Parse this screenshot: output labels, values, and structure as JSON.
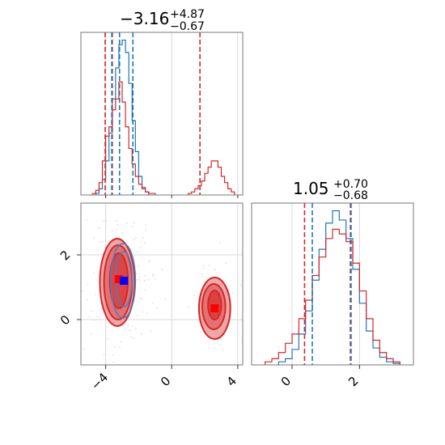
{
  "chart_data": [
    {
      "type": "histogram",
      "panel": "top-left marginal",
      "title_main": "−3.16",
      "title_sup": "+4.87",
      "title_sub": "−0.67",
      "xlim": [
        -5.5,
        4.3
      ],
      "grid": true,
      "series": [
        {
          "name": "",
          "color": "#1f77b4",
          "bins": [
            -4.6,
            -4.4,
            -4.2,
            -4.0,
            -3.8,
            -3.6,
            -3.4,
            -3.2,
            -3.0,
            -2.8,
            -2.6,
            -2.4,
            -2.2,
            -2.0,
            -1.8,
            -1.6
          ],
          "counts": [
            1,
            4,
            10,
            22,
            40,
            62,
            82,
            97,
            100,
            92,
            72,
            48,
            28,
            12,
            5,
            2
          ]
        },
        {
          "name": "",
          "color": "#d62728",
          "bins": [
            -4.8,
            -4.6,
            -4.4,
            -4.2,
            -4.0,
            -3.8,
            -3.6,
            -3.4,
            -3.2,
            -3.0,
            -2.8,
            -2.6,
            -2.4,
            -2.2,
            -2.0,
            -1.8,
            -1.6,
            -1.4,
            -1.2,
            1.0,
            1.2,
            1.4,
            1.6,
            1.8,
            2.0,
            2.2,
            2.4,
            2.6,
            2.8,
            3.0,
            3.2,
            3.4,
            3.6
          ],
          "counts": [
            1,
            3,
            8,
            22,
            38,
            44,
            55,
            62,
            73,
            60,
            44,
            30,
            20,
            12,
            7,
            4,
            2,
            1,
            1,
            1,
            2,
            4,
            6,
            9,
            14,
            18,
            22,
            22,
            18,
            12,
            8,
            4,
            2
          ]
        }
      ],
      "quantile_lines": {
        "blue": [
          -3.63,
          -3.16,
          -2.35
        ],
        "red": [
          -4.03,
          -3.6,
          1.71
        ]
      }
    },
    {
      "type": "contour",
      "panel": "bottom-left 2D",
      "xlim": [
        -5.5,
        4.3
      ],
      "ylim": [
        -1.4,
        3.6
      ],
      "x_ticks": [
        "−4",
        "0",
        "4"
      ],
      "y_ticks": [
        "0",
        "2"
      ],
      "grid": true,
      "red_centers": [
        {
          "x": -3.2,
          "y": 1.25
        },
        {
          "x": 2.6,
          "y": 0.35
        }
      ],
      "blue_centers": [
        {
          "x": -2.9,
          "y": 1.2
        }
      ],
      "red_weights": [
        0.75,
        0.25
      ]
    },
    {
      "type": "histogram",
      "panel": "bottom-right marginal",
      "title_main": "1.05",
      "title_sup": "+0.70",
      "title_sub": "−0.68",
      "xlim": [
        -1.2,
        3.6
      ],
      "x_ticks": [
        "0",
        "2"
      ],
      "grid": true,
      "series": [
        {
          "name": "",
          "color": "#1f77b4",
          "bins": [
            -0.4,
            -0.2,
            0.0,
            0.2,
            0.4,
            0.6,
            0.8,
            1.0,
            1.2,
            1.4,
            1.6,
            1.8,
            2.0,
            2.2,
            2.4,
            2.6,
            2.8,
            3.0
          ],
          "counts": [
            2,
            4,
            10,
            20,
            35,
            55,
            75,
            92,
            100,
            94,
            82,
            62,
            40,
            22,
            11,
            5,
            2,
            1
          ]
        },
        {
          "name": "",
          "color": "#d62728",
          "bins": [
            -0.8,
            -0.6,
            -0.4,
            -0.2,
            0.0,
            0.2,
            0.4,
            0.6,
            0.8,
            1.0,
            1.2,
            1.4,
            1.6,
            1.8,
            2.0,
            2.2,
            2.4,
            2.6,
            2.8,
            3.0
          ],
          "counts": [
            2,
            4,
            8,
            14,
            20,
            30,
            42,
            58,
            70,
            82,
            88,
            85,
            80,
            66,
            48,
            30,
            16,
            8,
            4,
            2
          ]
        }
      ],
      "quantile_lines": {
        "blue": [
          0.6,
          1.75
        ],
        "red": [
          0.37,
          1.73
        ]
      }
    }
  ]
}
